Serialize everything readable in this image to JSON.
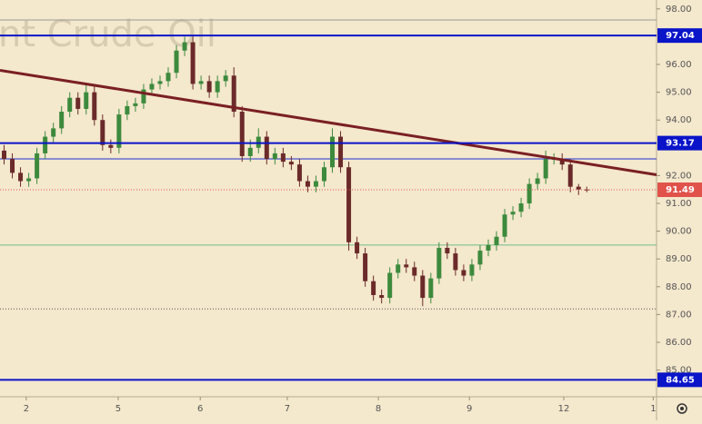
{
  "chart_data": {
    "type": "candlestick",
    "watermark": "nt Crude Oil",
    "xlim": [
      0,
      80
    ],
    "xticks": [
      {
        "value": 3.2,
        "label": "2"
      },
      {
        "value": 14.4,
        "label": "5"
      },
      {
        "value": 24.4,
        "label": "6"
      },
      {
        "value": 35,
        "label": "7"
      },
      {
        "value": 46.1,
        "label": "8"
      },
      {
        "value": 57.2,
        "label": "9"
      },
      {
        "value": 68.7,
        "label": "12"
      },
      {
        "value": 79.6,
        "label": "1"
      }
    ],
    "ylim": [
      84.04,
      98.32
    ],
    "yticks": [
      {
        "value": 98,
        "label": "98.00"
      },
      {
        "value": 96,
        "label": "96.00"
      },
      {
        "value": 95,
        "label": "95.00"
      },
      {
        "value": 94,
        "label": "94.00"
      },
      {
        "value": 92,
        "label": "92.00"
      },
      {
        "value": 91,
        "label": "91.00"
      },
      {
        "value": 90,
        "label": "90.00"
      },
      {
        "value": 89,
        "label": "89.00"
      },
      {
        "value": 88,
        "label": "88.00"
      },
      {
        "value": 87,
        "label": "87.00"
      },
      {
        "value": 86,
        "label": "86.00"
      },
      {
        "value": 85,
        "label": "85.00"
      }
    ],
    "up_color": "#3d8a3d",
    "down_color": "#6b2a2a",
    "open": [
      92.9,
      92.6,
      92.1,
      91.8,
      91.9,
      92.8,
      93.4,
      93.7,
      94.3,
      94.8,
      94.4,
      95.0,
      94.0,
      93.1,
      93.0,
      94.2,
      94.5,
      94.6,
      95.1,
      95.3,
      95.4,
      95.7,
      96.5,
      96.8,
      95.3,
      95.4,
      95.0,
      95.4,
      95.6,
      94.3,
      92.7,
      93.0,
      93.4,
      92.6,
      92.8,
      92.5,
      92.4,
      91.8,
      91.6,
      91.8,
      92.3,
      93.4,
      92.3,
      89.6,
      89.2,
      88.2,
      87.7,
      87.6,
      88.5,
      88.8,
      88.7,
      88.4,
      87.6,
      88.3,
      89.4,
      89.2,
      88.6,
      88.4,
      88.8,
      89.3,
      89.5,
      89.8,
      90.6,
      90.7,
      91.0,
      91.7,
      91.9,
      92.6,
      92.6,
      92.4,
      91.6,
      91.5
    ],
    "high": [
      93.1,
      92.8,
      92.3,
      92.1,
      93.0,
      93.6,
      93.9,
      94.5,
      95.0,
      95.0,
      95.3,
      95.2,
      94.2,
      93.3,
      94.4,
      94.7,
      94.8,
      95.3,
      95.5,
      95.6,
      95.9,
      96.7,
      97.0,
      97.0,
      95.6,
      95.6,
      95.6,
      95.8,
      95.9,
      94.5,
      93.3,
      93.7,
      93.6,
      93.0,
      93.0,
      92.7,
      92.6,
      92.0,
      92.0,
      92.5,
      93.7,
      93.6,
      92.5,
      89.8,
      89.4,
      88.4,
      87.9,
      88.7,
      89.0,
      89.0,
      88.9,
      88.6,
      88.5,
      89.6,
      89.6,
      89.4,
      88.8,
      89.0,
      89.5,
      89.7,
      90.0,
      90.8,
      90.9,
      91.2,
      91.9,
      92.1,
      92.9,
      92.8,
      92.8,
      92.6,
      91.7,
      91.6
    ],
    "low": [
      92.4,
      91.9,
      91.6,
      91.6,
      91.7,
      92.6,
      93.2,
      93.5,
      94.1,
      94.2,
      94.2,
      93.8,
      92.9,
      92.8,
      92.8,
      94.0,
      94.3,
      94.4,
      94.9,
      95.1,
      95.2,
      95.5,
      96.3,
      95.1,
      95.1,
      94.8,
      94.8,
      95.2,
      94.1,
      92.5,
      92.5,
      92.8,
      92.4,
      92.4,
      92.3,
      92.2,
      91.6,
      91.4,
      91.4,
      91.6,
      92.1,
      92.1,
      89.3,
      89.0,
      88.0,
      87.5,
      87.4,
      87.4,
      88.3,
      88.5,
      88.2,
      87.3,
      87.4,
      88.1,
      89.0,
      88.4,
      88.2,
      88.2,
      88.6,
      89.1,
      89.3,
      89.6,
      90.4,
      90.5,
      90.8,
      91.5,
      91.7,
      92.4,
      92.2,
      91.4,
      91.3,
      91.4
    ],
    "close": [
      92.6,
      92.1,
      91.8,
      91.9,
      92.8,
      93.4,
      93.7,
      94.3,
      94.8,
      94.4,
      95.0,
      94.0,
      93.1,
      93.0,
      94.2,
      94.5,
      94.6,
      95.1,
      95.3,
      95.4,
      95.7,
      96.5,
      96.8,
      95.3,
      95.4,
      95.0,
      95.4,
      95.6,
      94.3,
      92.7,
      93.0,
      93.4,
      92.6,
      92.8,
      92.5,
      92.4,
      91.8,
      91.6,
      91.8,
      92.3,
      93.4,
      92.3,
      89.6,
      89.2,
      88.2,
      87.7,
      87.6,
      88.5,
      88.8,
      88.7,
      88.4,
      87.6,
      88.3,
      89.4,
      89.2,
      88.6,
      88.4,
      88.8,
      89.3,
      89.5,
      89.8,
      90.6,
      90.7,
      91.0,
      91.7,
      91.9,
      92.6,
      92.6,
      92.4,
      91.6,
      91.5,
      91.49
    ],
    "levels": [
      {
        "value": 97.04,
        "label": "97.04",
        "color": "#0a14c8"
      },
      {
        "value": 93.17,
        "label": "93.17",
        "color": "#0a14c8"
      },
      {
        "value": 84.65,
        "label": "84.65",
        "color": "#0a14c8"
      },
      {
        "value": 91.49,
        "label": "91.49",
        "color": "#e0524a"
      }
    ],
    "lines": [
      {
        "value": 97.6,
        "color": "#9a9a9a"
      },
      {
        "value": 92.6,
        "color": "#2030d0"
      },
      {
        "value": 89.5,
        "color": "#6fbf8a"
      },
      {
        "value": 87.2,
        "color": "#555555"
      }
    ],
    "trendline": {
      "x": [
        0,
        80
      ],
      "values": [
        95.79,
        92.03
      ],
      "color": "#7a1f24"
    }
  }
}
